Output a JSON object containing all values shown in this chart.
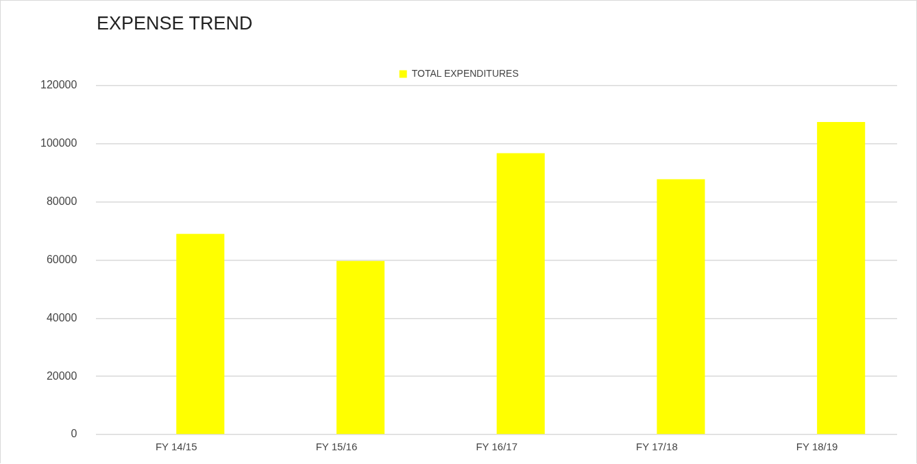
{
  "chart_data": {
    "type": "bar",
    "title": "EXPENSE TREND",
    "categories": [
      "FY 14/15",
      "FY 15/16",
      "FY 16/17",
      "FY 17/18",
      "FY 18/19"
    ],
    "series": [
      {
        "color": "#bfe9f2",
        "values": [
          null,
          null,
          null,
          null,
          null
        ]
      },
      {
        "name": "TOTAL EXPENDITURES",
        "color": "#ffff00",
        "values": [
          69000,
          59700,
          96800,
          87800,
          107500
        ]
      }
    ],
    "ylim": [
      0,
      120000
    ],
    "yticks": [
      0,
      20000,
      40000,
      60000,
      80000,
      100000,
      120000
    ],
    "grid": "y",
    "legend": "top"
  }
}
